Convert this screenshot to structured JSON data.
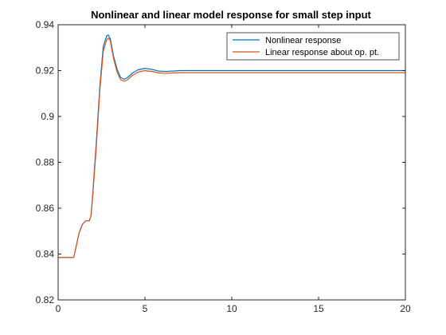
{
  "chart_data": {
    "type": "line",
    "title": "Nonlinear and linear model response for small step input",
    "xlabel": "",
    "ylabel": "",
    "xlim": [
      0,
      20
    ],
    "ylim": [
      0.82,
      0.94
    ],
    "xticks": [
      0,
      5,
      10,
      15,
      20
    ],
    "xtick_labels": [
      "0",
      "5",
      "10",
      "15",
      "20"
    ],
    "yticks": [
      0.82,
      0.84,
      0.86,
      0.88,
      0.9,
      0.92,
      0.94
    ],
    "ytick_labels": [
      "0.82",
      "0.84",
      "0.86",
      "0.88",
      "0.9",
      "0.92",
      "0.94"
    ],
    "grid": false,
    "legend_position": "top-right",
    "series": [
      {
        "name": "Nonlinear response",
        "color": "#0072BD",
        "x": [
          0,
          0.9,
          1.0,
          1.2,
          1.4,
          1.6,
          1.8,
          1.9,
          2.0,
          2.2,
          2.4,
          2.6,
          2.8,
          2.9,
          3.0,
          3.2,
          3.4,
          3.6,
          3.8,
          4.0,
          4.3,
          4.6,
          5.0,
          5.4,
          5.8,
          6.2,
          6.6,
          7.0,
          8.0,
          10.0,
          12.0,
          15.0,
          20.0
        ],
        "y": [
          0.8385,
          0.8385,
          0.842,
          0.849,
          0.853,
          0.8545,
          0.8545,
          0.857,
          0.867,
          0.889,
          0.913,
          0.9305,
          0.9352,
          0.9355,
          0.934,
          0.926,
          0.9205,
          0.917,
          0.9162,
          0.917,
          0.919,
          0.9203,
          0.921,
          0.9205,
          0.9198,
          0.9196,
          0.9198,
          0.92,
          0.92,
          0.92,
          0.92,
          0.92,
          0.92
        ]
      },
      {
        "name": "Linear response about op. pt.",
        "color": "#D95319",
        "x": [
          0,
          0.9,
          1.0,
          1.2,
          1.4,
          1.6,
          1.8,
          1.9,
          2.0,
          2.2,
          2.4,
          2.6,
          2.8,
          2.9,
          3.0,
          3.2,
          3.4,
          3.6,
          3.8,
          4.0,
          4.3,
          4.6,
          5.0,
          5.4,
          5.8,
          6.2,
          6.6,
          7.0,
          8.0,
          10.0,
          12.0,
          15.0,
          20.0
        ],
        "y": [
          0.8385,
          0.8385,
          0.842,
          0.849,
          0.853,
          0.8545,
          0.8545,
          0.857,
          0.866,
          0.887,
          0.911,
          0.9285,
          0.9335,
          0.9342,
          0.933,
          0.925,
          0.9192,
          0.916,
          0.9153,
          0.916,
          0.918,
          0.9193,
          0.92,
          0.9196,
          0.919,
          0.9188,
          0.919,
          0.9191,
          0.9191,
          0.9191,
          0.9191,
          0.9191,
          0.9191
        ]
      }
    ]
  }
}
